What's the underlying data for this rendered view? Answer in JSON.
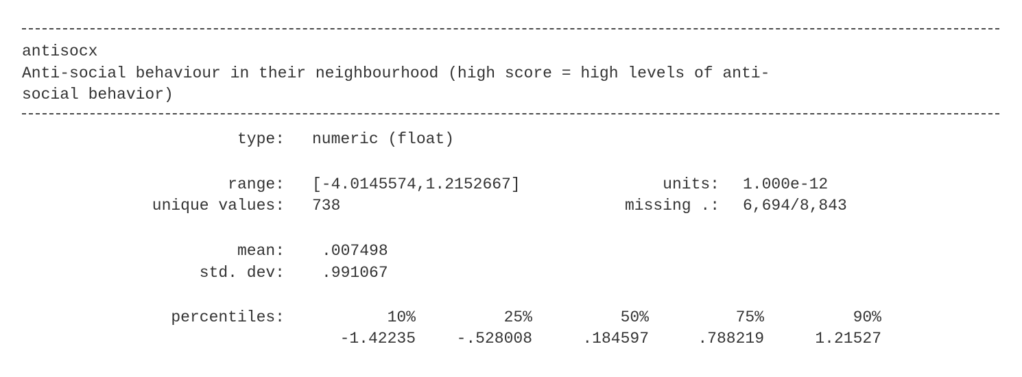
{
  "variable": {
    "name": "antisocx",
    "label_line1": "Anti-social behaviour in their neighbourhood (high score = high levels of anti-",
    "label_line2": "social behavior)"
  },
  "type": {
    "label": "type:",
    "value": "numeric (float)"
  },
  "range": {
    "label": "range:",
    "value": "[-4.0145574,1.2152667]"
  },
  "units": {
    "label": "units:",
    "value": "1.000e-12"
  },
  "unique_values": {
    "label": "unique values:",
    "value": "738"
  },
  "missing": {
    "label": "missing .:",
    "value": "6,694/8,843"
  },
  "mean": {
    "label": "mean:",
    "value": ".007498"
  },
  "std_dev": {
    "label": "std. dev:",
    "value": ".991067"
  },
  "percentiles": {
    "label": "percentiles:",
    "headers": [
      "10%",
      "25%",
      "50%",
      "75%",
      "90%"
    ],
    "values": [
      "-1.42235",
      "-.528008",
      ".184597",
      ".788219",
      "1.21527"
    ]
  }
}
